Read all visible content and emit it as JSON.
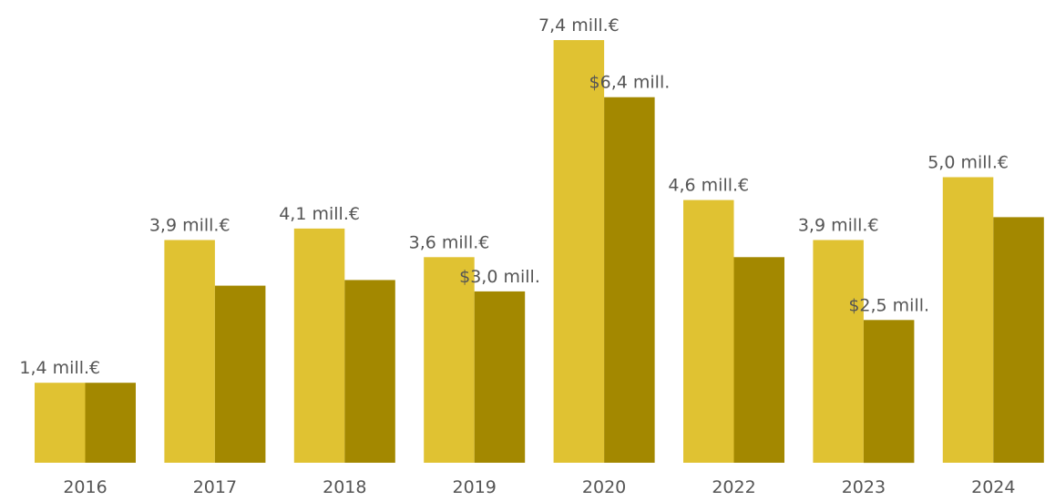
{
  "chart_data": {
    "type": "bar",
    "title": "",
    "xlabel": "",
    "ylabel": "",
    "ylim": [
      0,
      7.8
    ],
    "grid": false,
    "legend": "none",
    "categories": [
      "2016",
      "2017",
      "2018",
      "2019",
      "2020",
      "2022",
      "2023",
      "2024"
    ],
    "series": [
      {
        "color": "#E0C232",
        "values": [
          1.4,
          3.9,
          4.1,
          3.6,
          7.4,
          4.6,
          3.9,
          5.0
        ],
        "labels": [
          "1,4 mill.€",
          "3,9 mill.€",
          "4,1 mill.€",
          "3,6 mill.€",
          "7,4 mill.€",
          "4,6 mill.€",
          "3,9 mill.€",
          "5,0 mill.€"
        ]
      },
      {
        "color": "#A38800",
        "values": [
          1.4,
          3.1,
          3.2,
          3.0,
          6.4,
          3.6,
          2.5,
          4.3
        ],
        "labels": [
          "",
          "",
          "",
          "$3,0 mill.",
          "$6,4 mill.",
          "",
          "$2,5 mill.",
          ""
        ]
      }
    ]
  }
}
